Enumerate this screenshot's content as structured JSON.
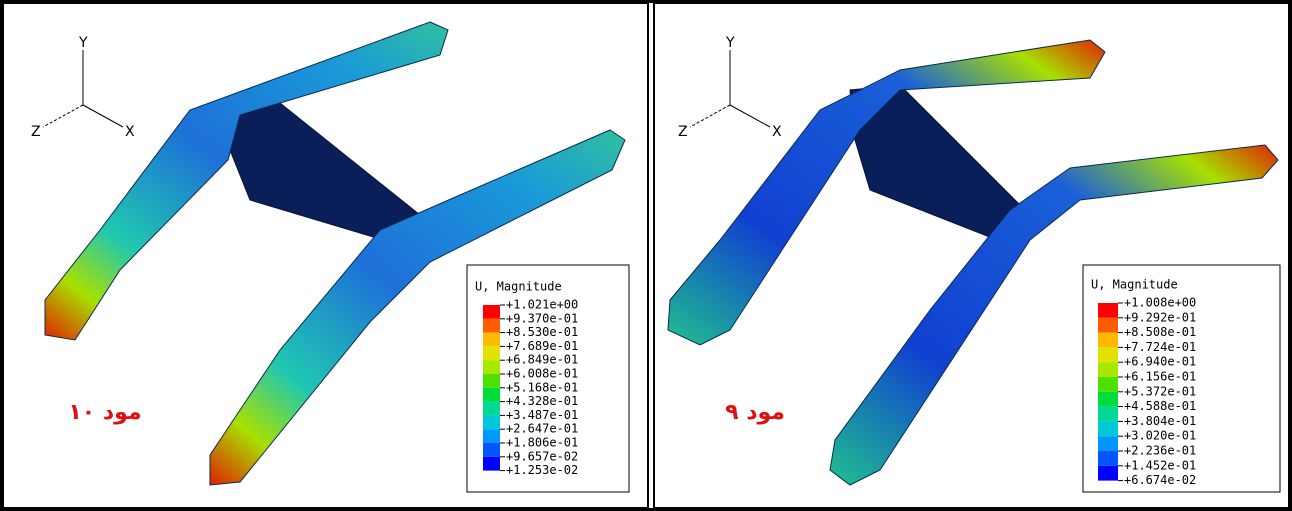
{
  "panels": [
    {
      "triad": {
        "y": "Y",
        "z": "Z",
        "x": "X"
      },
      "legend": {
        "title": "U, Magnitude",
        "labels": [
          "+1.021e+00",
          "+9.370e-01",
          "+8.530e-01",
          "+7.689e-01",
          "+6.849e-01",
          "+6.008e-01",
          "+5.168e-01",
          "+4.328e-01",
          "+3.487e-01",
          "+2.647e-01",
          "+1.806e-01",
          "+9.657e-02",
          "+1.253e-02"
        ]
      },
      "mode_label": "مود ۱۰"
    },
    {
      "triad": {
        "y": "Y",
        "z": "Z",
        "x": "X"
      },
      "legend": {
        "title": "U, Magnitude",
        "labels": [
          "+1.008e+00",
          "+9.292e-01",
          "+8.508e-01",
          "+7.724e-01",
          "+6.940e-01",
          "+6.156e-01",
          "+5.372e-01",
          "+4.588e-01",
          "+3.804e-01",
          "+3.020e-01",
          "+2.236e-01",
          "+1.452e-01",
          "+6.674e-02"
        ]
      },
      "mode_label": "مود ۹"
    }
  ]
}
